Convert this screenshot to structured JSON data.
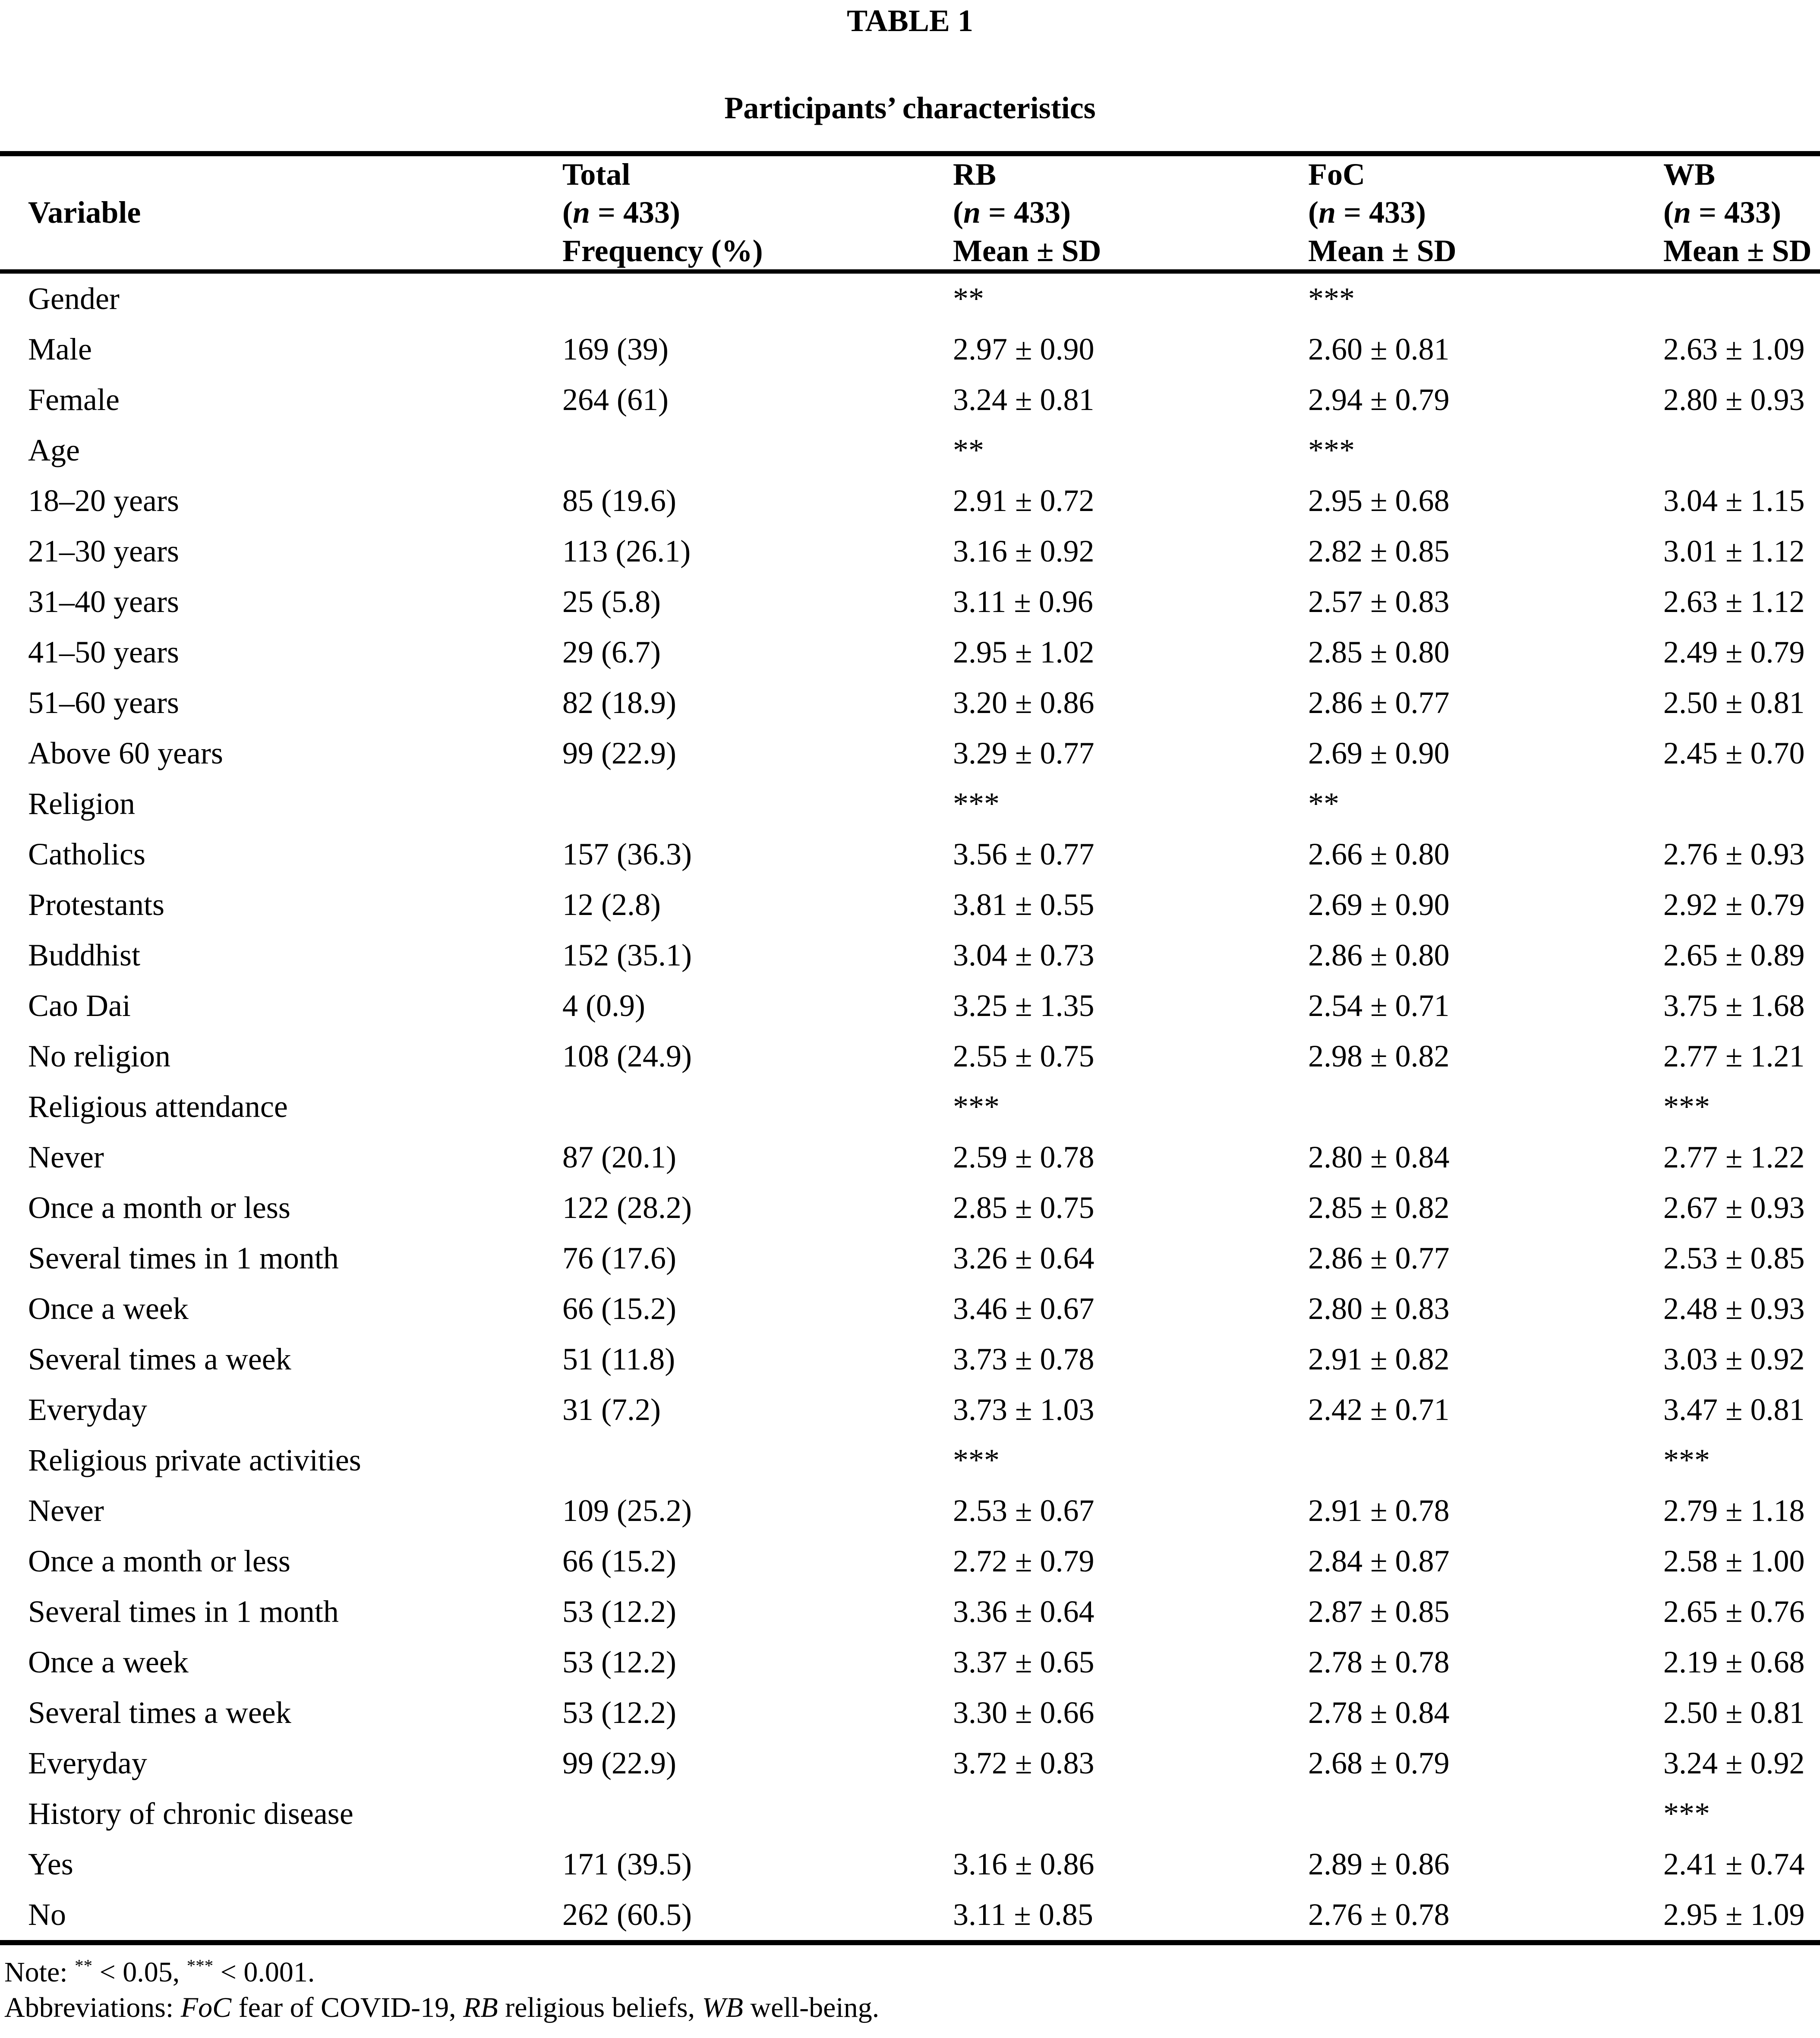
{
  "table_label": "TABLE 1",
  "table_title": "Participants’ characteristics",
  "header": {
    "variable_label": "Variable",
    "n_label": {
      "pre": "(",
      "italic": "n",
      "post": " = 433)"
    },
    "cols": [
      {
        "name": "Total",
        "stat": "Frequency (%)"
      },
      {
        "name": "RB",
        "stat": "Mean ± SD"
      },
      {
        "name": "FoC",
        "stat": "Mean ± SD"
      },
      {
        "name": "WB",
        "stat": "Mean ± SD"
      }
    ]
  },
  "rows": [
    {
      "label": "Gender",
      "group": true,
      "total": "",
      "rb": "**",
      "foc": "***",
      "wb": ""
    },
    {
      "label": "Male",
      "group": false,
      "total": "169 (39)",
      "rb": "2.97 ± 0.90",
      "foc": "2.60 ± 0.81",
      "wb": "2.63 ± 1.09"
    },
    {
      "label": "Female",
      "group": false,
      "total": "264 (61)",
      "rb": "3.24 ± 0.81",
      "foc": "2.94 ± 0.79",
      "wb": "2.80 ± 0.93"
    },
    {
      "label": "Age",
      "group": true,
      "total": "",
      "rb": "**",
      "foc": "***",
      "wb": ""
    },
    {
      "label": "18–20 years",
      "group": false,
      "total": "85 (19.6)",
      "rb": "2.91 ± 0.72",
      "foc": "2.95 ± 0.68",
      "wb": "3.04 ± 1.15"
    },
    {
      "label": "21–30 years",
      "group": false,
      "total": "113 (26.1)",
      "rb": "3.16 ± 0.92",
      "foc": "2.82 ± 0.85",
      "wb": "3.01 ± 1.12"
    },
    {
      "label": "31–40 years",
      "group": false,
      "total": "25 (5.8)",
      "rb": "3.11 ± 0.96",
      "foc": "2.57 ± 0.83",
      "wb": "2.63 ± 1.12"
    },
    {
      "label": "41–50 years",
      "group": false,
      "total": "29 (6.7)",
      "rb": "2.95 ± 1.02",
      "foc": "2.85 ± 0.80",
      "wb": "2.49 ± 0.79"
    },
    {
      "label": "51–60 years",
      "group": false,
      "total": "82 (18.9)",
      "rb": "3.20 ± 0.86",
      "foc": "2.86 ± 0.77",
      "wb": "2.50 ± 0.81"
    },
    {
      "label": "Above 60 years",
      "group": false,
      "total": "99 (22.9)",
      "rb": "3.29 ± 0.77",
      "foc": "2.69 ± 0.90",
      "wb": "2.45 ± 0.70"
    },
    {
      "label": "Religion",
      "group": true,
      "total": "",
      "rb": "***",
      "foc": "**",
      "wb": ""
    },
    {
      "label": "Catholics",
      "group": false,
      "total": "157 (36.3)",
      "rb": "3.56 ± 0.77",
      "foc": "2.66 ± 0.80",
      "wb": "2.76 ± 0.93"
    },
    {
      "label": "Protestants",
      "group": false,
      "total": "12 (2.8)",
      "rb": "3.81 ± 0.55",
      "foc": "2.69 ± 0.90",
      "wb": "2.92 ± 0.79"
    },
    {
      "label": "Buddhist",
      "group": false,
      "total": "152 (35.1)",
      "rb": "3.04 ± 0.73",
      "foc": "2.86 ± 0.80",
      "wb": "2.65 ± 0.89"
    },
    {
      "label": "Cao Dai",
      "group": false,
      "total": "4 (0.9)",
      "rb": "3.25 ± 1.35",
      "foc": "2.54 ± 0.71",
      "wb": "3.75 ± 1.68"
    },
    {
      "label": "No religion",
      "group": false,
      "total": "108 (24.9)",
      "rb": "2.55 ± 0.75",
      "foc": "2.98 ± 0.82",
      "wb": "2.77 ± 1.21"
    },
    {
      "label": "Religious attendance",
      "group": true,
      "total": "",
      "rb": "***",
      "foc": "",
      "wb": "***"
    },
    {
      "label": "Never",
      "group": false,
      "total": "87 (20.1)",
      "rb": "2.59 ± 0.78",
      "foc": "2.80 ± 0.84",
      "wb": "2.77 ± 1.22"
    },
    {
      "label": "Once a month or less",
      "group": false,
      "total": "122 (28.2)",
      "rb": "2.85 ± 0.75",
      "foc": "2.85 ± 0.82",
      "wb": "2.67 ± 0.93"
    },
    {
      "label": "Several times in 1 month",
      "group": false,
      "total": "76 (17.6)",
      "rb": "3.26 ± 0.64",
      "foc": "2.86 ± 0.77",
      "wb": "2.53 ± 0.85"
    },
    {
      "label": "Once a week",
      "group": false,
      "total": "66 (15.2)",
      "rb": "3.46 ± 0.67",
      "foc": "2.80 ± 0.83",
      "wb": "2.48 ± 0.93"
    },
    {
      "label": "Several times a week",
      "group": false,
      "total": "51 (11.8)",
      "rb": "3.73 ± 0.78",
      "foc": "2.91 ± 0.82",
      "wb": "3.03 ± 0.92"
    },
    {
      "label": "Everyday",
      "group": false,
      "total": "31 (7.2)",
      "rb": "3.73 ± 1.03",
      "foc": "2.42 ± 0.71",
      "wb": "3.47 ± 0.81"
    },
    {
      "label": "Religious private activities",
      "group": true,
      "total": "",
      "rb": "***",
      "foc": "",
      "wb": "***"
    },
    {
      "label": "Never",
      "group": false,
      "total": "109 (25.2)",
      "rb": "2.53 ± 0.67",
      "foc": "2.91 ± 0.78",
      "wb": "2.79 ± 1.18"
    },
    {
      "label": "Once a month or less",
      "group": false,
      "total": "66 (15.2)",
      "rb": "2.72 ± 0.79",
      "foc": "2.84 ± 0.87",
      "wb": "2.58 ± 1.00"
    },
    {
      "label": "Several times in 1 month",
      "group": false,
      "total": "53 (12.2)",
      "rb": "3.36 ± 0.64",
      "foc": "2.87 ± 0.85",
      "wb": "2.65 ± 0.76"
    },
    {
      "label": "Once a week",
      "group": false,
      "total": "53 (12.2)",
      "rb": "3.37 ± 0.65",
      "foc": "2.78 ± 0.78",
      "wb": "2.19 ± 0.68"
    },
    {
      "label": "Several times a week",
      "group": false,
      "total": "53 (12.2)",
      "rb": "3.30 ± 0.66",
      "foc": "2.78 ± 0.84",
      "wb": "2.50 ± 0.81"
    },
    {
      "label": "Everyday",
      "group": false,
      "total": "99 (22.9)",
      "rb": "3.72 ± 0.83",
      "foc": "2.68 ± 0.79",
      "wb": "3.24 ± 0.92"
    },
    {
      "label": "History of chronic disease",
      "group": true,
      "total": "",
      "rb": "",
      "foc": "",
      "wb": "***"
    },
    {
      "label": "Yes",
      "group": false,
      "total": "171 (39.5)",
      "rb": "3.16 ± 0.86",
      "foc": "2.89 ± 0.86",
      "wb": "2.41 ± 0.74"
    },
    {
      "label": "No",
      "group": false,
      "total": "262 (60.5)",
      "rb": "3.11 ± 0.85",
      "foc": "2.76 ± 0.78",
      "wb": "2.95 ± 1.09"
    }
  ],
  "note_parts": [
    {
      "t": "Note: "
    },
    {
      "t": "**",
      "sup": true
    },
    {
      "t": " < 0.05, "
    },
    {
      "t": "***",
      "sup": true
    },
    {
      "t": " < 0.001."
    }
  ],
  "abbrev_parts": [
    {
      "t": "Abbreviations: "
    },
    {
      "t": "FoC",
      "i": true
    },
    {
      "t": " fear of COVID-19, "
    },
    {
      "t": "RB",
      "i": true
    },
    {
      "t": " religious beliefs, "
    },
    {
      "t": "WB",
      "i": true
    },
    {
      "t": " well-being."
    }
  ]
}
